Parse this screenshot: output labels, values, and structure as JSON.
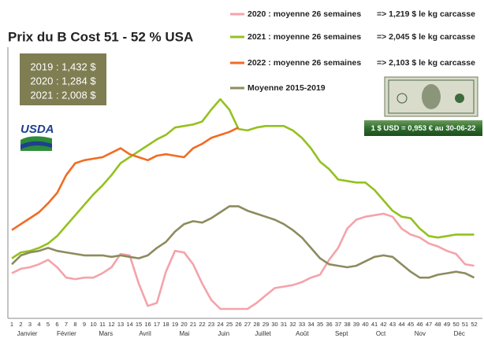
{
  "chart_data": {
    "type": "line",
    "title": "Prix du B Cost 51 - 52 % USA",
    "categories": [
      "1",
      "2",
      "3",
      "4",
      "5",
      "6",
      "7",
      "8",
      "9",
      "10",
      "11",
      "12",
      "13",
      "14",
      "15",
      "16",
      "17",
      "18",
      "19",
      "20",
      "21",
      "22",
      "23",
      "24",
      "25",
      "26",
      "27",
      "28",
      "29",
      "30",
      "31",
      "32",
      "33",
      "34",
      "35",
      "36",
      "37",
      "38",
      "39",
      "40",
      "41",
      "42",
      "43",
      "44",
      "45",
      "46",
      "47",
      "48",
      "49",
      "50",
      "51",
      "52"
    ],
    "months": [
      "Janvier",
      "Février",
      "Mars",
      "Avril",
      "Mai",
      "Juin",
      "Juillet",
      "Août",
      "Sept",
      "Oct",
      "Nov",
      "Déc"
    ],
    "ylim": [
      0.95,
      2.8
    ],
    "series": [
      {
        "name": "2020 : moyenne 26 semaines",
        "note": "=> 1,219 $ le kg carcasse",
        "color": "#f4a3aa",
        "values": [
          1.28,
          1.31,
          1.32,
          1.34,
          1.37,
          1.32,
          1.25,
          1.24,
          1.25,
          1.25,
          1.28,
          1.32,
          1.41,
          1.4,
          1.21,
          1.06,
          1.08,
          1.29,
          1.43,
          1.42,
          1.34,
          1.21,
          1.1,
          1.04,
          1.04,
          1.04,
          1.04,
          1.08,
          1.13,
          1.18,
          1.19,
          1.2,
          1.22,
          1.25,
          1.27,
          1.37,
          1.45,
          1.58,
          1.64,
          1.66,
          1.67,
          1.68,
          1.66,
          1.58,
          1.54,
          1.52,
          1.48,
          1.46,
          1.43,
          1.41,
          1.34,
          1.33
        ]
      },
      {
        "name": "2021 : moyenne 26 semaines",
        "note": "=> 2,045 $ le kg carcasse",
        "color": "#94c11f",
        "values": [
          1.38,
          1.42,
          1.43,
          1.45,
          1.48,
          1.53,
          1.6,
          1.67,
          1.74,
          1.81,
          1.87,
          1.94,
          2.02,
          2.06,
          2.1,
          2.14,
          2.18,
          2.21,
          2.26,
          2.27,
          2.28,
          2.3,
          2.38,
          2.45,
          2.38,
          2.25,
          2.24,
          2.26,
          2.27,
          2.27,
          2.27,
          2.24,
          2.19,
          2.12,
          2.03,
          1.98,
          1.91,
          1.9,
          1.89,
          1.89,
          1.84,
          1.77,
          1.7,
          1.66,
          1.65,
          1.58,
          1.53,
          1.52,
          1.53,
          1.54,
          1.54,
          1.54
        ]
      },
      {
        "name": "2022 : moyenne 26 semaines",
        "note": "=> 2,103 $ le kg carcasse",
        "color": "#f26b21",
        "values": [
          1.57,
          1.61,
          1.65,
          1.69,
          1.75,
          1.82,
          1.94,
          2.02,
          2.04,
          2.05,
          2.06,
          2.09,
          2.12,
          2.08,
          2.06,
          2.04,
          2.07,
          2.08,
          2.07,
          2.06,
          2.12,
          2.15,
          2.19,
          2.21,
          2.23,
          2.26,
          null,
          null,
          null,
          null,
          null,
          null,
          null,
          null,
          null,
          null,
          null,
          null,
          null,
          null,
          null,
          null,
          null,
          null,
          null,
          null,
          null,
          null,
          null,
          null,
          null,
          null
        ]
      },
      {
        "name": "Moyenne 2015-2019",
        "color": "#8d8b5e",
        "values": [
          1.34,
          1.4,
          1.42,
          1.43,
          1.45,
          1.43,
          1.42,
          1.41,
          1.4,
          1.4,
          1.4,
          1.39,
          1.4,
          1.39,
          1.38,
          1.4,
          1.45,
          1.49,
          1.56,
          1.61,
          1.63,
          1.62,
          1.65,
          1.69,
          1.73,
          1.73,
          1.7,
          1.68,
          1.66,
          1.64,
          1.61,
          1.57,
          1.52,
          1.45,
          1.38,
          1.34,
          1.33,
          1.32,
          1.33,
          1.36,
          1.39,
          1.4,
          1.39,
          1.34,
          1.29,
          1.25,
          1.25,
          1.27,
          1.28,
          1.29,
          1.28,
          1.25
        ]
      }
    ],
    "box_lines": [
      "2019 : 1,432 $",
      "2020 : 1,284 $",
      "2021 : 2,008 $"
    ],
    "logo": "USDA",
    "exchange": "1 $ USD = 0,953 € au 30-06-22"
  }
}
